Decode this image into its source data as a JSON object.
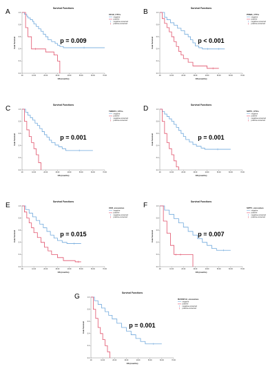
{
  "colors": {
    "negative": "#6fa8dc",
    "positive": "#e0506a",
    "axis": "#555555"
  },
  "chart_data": [
    {
      "type": "line",
      "letter": "A",
      "title": "Survival Functions",
      "legend_title": "CK19_CTCs",
      "legend": [
        "negative",
        "positive",
        "negative-censored",
        "positive-censored"
      ],
      "xlabel": "OS (months)",
      "ylabel": "Cum Survival",
      "xlim": [
        0,
        70
      ],
      "ylim": [
        0,
        1
      ],
      "xticks": [
        ".00",
        "10.00",
        "20.00",
        "30.00",
        "40.00",
        "50.00",
        "60.00",
        "70.00"
      ],
      "yticks": [
        "0.0",
        "0.2",
        "0.4",
        "0.6",
        "0.8",
        "1.0"
      ],
      "p_value": "p = 0.009",
      "series": [
        {
          "name": "negative",
          "x": [
            0,
            2,
            4,
            5,
            7,
            9,
            10,
            12,
            14,
            16,
            18,
            20,
            22,
            25,
            28,
            30,
            32,
            35,
            70
          ],
          "y": [
            1.0,
            0.97,
            0.94,
            0.91,
            0.88,
            0.85,
            0.81,
            0.77,
            0.73,
            0.69,
            0.64,
            0.6,
            0.55,
            0.52,
            0.49,
            0.46,
            0.44,
            0.42,
            0.42
          ]
        },
        {
          "name": "positive",
          "x": [
            0,
            3,
            5,
            8,
            15,
            20,
            27,
            30,
            32
          ],
          "y": [
            1.0,
            0.75,
            0.6,
            0.4,
            0.4,
            0.35,
            0.3,
            0.2,
            0.0
          ]
        }
      ]
    },
    {
      "type": "line",
      "letter": "B",
      "title": "Survival Functions",
      "legend_title": "PSMA_CTCs",
      "legend": [
        "negative",
        "positive",
        "negative-censored",
        "positive-censored"
      ],
      "xlabel": "OS (months)",
      "ylabel": "Cum Survival",
      "xlim": [
        0,
        70
      ],
      "ylim": [
        0,
        1
      ],
      "xticks": [
        ".00",
        "10.00",
        "20.00",
        "30.00",
        "40.00",
        "50.00",
        "60.00",
        "70.00"
      ],
      "yticks": [
        "0.0",
        "0.2",
        "0.4",
        "0.6",
        "0.8",
        "1.0"
      ],
      "p_value": "p < 0.001",
      "series": [
        {
          "name": "negative",
          "x": [
            0,
            4,
            6,
            9,
            12,
            15,
            18,
            21,
            24,
            26,
            28,
            30,
            33,
            36,
            45,
            55
          ],
          "y": [
            1.0,
            0.92,
            0.88,
            0.83,
            0.79,
            0.74,
            0.7,
            0.64,
            0.6,
            0.55,
            0.5,
            0.45,
            0.42,
            0.4,
            0.4,
            0.4
          ]
        },
        {
          "name": "positive",
          "x": [
            0,
            2,
            4,
            6,
            8,
            10,
            12,
            14,
            16,
            18,
            20,
            24,
            28,
            40,
            50
          ],
          "y": [
            1.0,
            0.9,
            0.82,
            0.75,
            0.68,
            0.6,
            0.52,
            0.44,
            0.36,
            0.3,
            0.24,
            0.18,
            0.12,
            0.08,
            0.08
          ]
        }
      ]
    },
    {
      "type": "line",
      "letter": "C",
      "title": "Survival Functions",
      "legend_title": "TWIST1_CTCs",
      "legend": [
        "negative",
        "positive",
        "negative-censored",
        "positive-censored"
      ],
      "xlabel": "OS (months)",
      "ylabel": "Cum Survival",
      "xlim": [
        0,
        70
      ],
      "ylim": [
        0,
        1
      ],
      "xticks": [
        ".00",
        "10.00",
        "20.00",
        "30.00",
        "40.00",
        "50.00",
        "60.00",
        "70.00"
      ],
      "yticks": [
        "0.0",
        "0.2",
        "0.4",
        "0.6",
        "0.8",
        "1.0"
      ],
      "p_value": "p = 0.001",
      "series": [
        {
          "name": "negative",
          "x": [
            0,
            3,
            5,
            7,
            9,
            11,
            13,
            15,
            17,
            19,
            21,
            23,
            25,
            28,
            31,
            34,
            37,
            60
          ],
          "y": [
            1.0,
            0.95,
            0.9,
            0.86,
            0.82,
            0.77,
            0.73,
            0.68,
            0.63,
            0.58,
            0.54,
            0.49,
            0.45,
            0.41,
            0.38,
            0.35,
            0.32,
            0.32
          ]
        },
        {
          "name": "positive",
          "x": [
            0,
            2,
            4,
            6,
            8,
            10,
            12,
            14,
            16
          ],
          "y": [
            1.0,
            0.8,
            0.66,
            0.55,
            0.45,
            0.35,
            0.25,
            0.12,
            0.0
          ]
        }
      ]
    },
    {
      "type": "line",
      "letter": "D",
      "title": "Survival Functions",
      "legend_title": "SIPT1_CTCs",
      "legend": [
        "negative",
        "positive",
        "negative-censored",
        "positive-censored"
      ],
      "xlabel": "OS (months)",
      "ylabel": "Cum Survival",
      "xlim": [
        0,
        70
      ],
      "ylim": [
        0,
        1
      ],
      "xticks": [
        ".00",
        "10.00",
        "20.00",
        "30.00",
        "40.00",
        "50.00",
        "60.00",
        "70.00"
      ],
      "yticks": [
        "0.0",
        "0.2",
        "0.4",
        "0.6",
        "0.8",
        "1.0"
      ],
      "p_value": "p = 0.001",
      "series": [
        {
          "name": "negative",
          "x": [
            0,
            2,
            4,
            6,
            8,
            10,
            12,
            14,
            16,
            18,
            20,
            22,
            25,
            28,
            31,
            35,
            38,
            60
          ],
          "y": [
            1.0,
            0.96,
            0.92,
            0.88,
            0.84,
            0.8,
            0.75,
            0.7,
            0.65,
            0.6,
            0.55,
            0.5,
            0.46,
            0.42,
            0.39,
            0.36,
            0.34,
            0.34
          ]
        },
        {
          "name": "positive",
          "x": [
            0,
            2,
            4,
            6,
            8,
            10,
            12,
            14,
            16
          ],
          "y": [
            1.0,
            0.8,
            0.6,
            0.45,
            0.35,
            0.25,
            0.15,
            0.05,
            0.0
          ]
        }
      ]
    },
    {
      "type": "line",
      "letter": "E",
      "title": "Survival Functions",
      "legend_title": "CK8_exosomes",
      "legend": [
        "negative",
        "positive",
        "negative-censored",
        "positive-censored"
      ],
      "xlabel": "OS (months)",
      "ylabel": "Cum Survival",
      "xlim": [
        0,
        70
      ],
      "ylim": [
        0,
        1
      ],
      "xticks": [
        ".00",
        "10.00",
        "20.00",
        "30.00",
        "40.00",
        "50.00",
        "60.00",
        "70.00"
      ],
      "yticks": [
        "0.0",
        "0.2",
        "0.4",
        "0.6",
        "0.8",
        "1.0"
      ],
      "p_value": "p = 0.015",
      "series": [
        {
          "name": "negative",
          "x": [
            0,
            3,
            6,
            9,
            12,
            15,
            18,
            21,
            24,
            27,
            30,
            34,
            38,
            50
          ],
          "y": [
            1.0,
            0.94,
            0.88,
            0.82,
            0.76,
            0.7,
            0.64,
            0.58,
            0.52,
            0.47,
            0.43,
            0.4,
            0.38,
            0.38
          ]
        },
        {
          "name": "positive",
          "x": [
            0,
            2,
            4,
            6,
            8,
            10,
            13,
            16,
            19,
            22,
            25,
            30,
            35,
            45,
            50
          ],
          "y": [
            1.0,
            0.9,
            0.8,
            0.72,
            0.64,
            0.56,
            0.48,
            0.4,
            0.32,
            0.26,
            0.2,
            0.15,
            0.1,
            0.08,
            0.08
          ]
        }
      ]
    },
    {
      "type": "line",
      "letter": "F",
      "title": "Survival Functions",
      "legend_title": "SIPT1_exosomes",
      "legend": [
        "negative",
        "positive",
        "negative-censored",
        "positive-censored"
      ],
      "xlabel": "OS (months)",
      "ylabel": "Cum Survival",
      "xlim": [
        0,
        70
      ],
      "ylim": [
        0,
        1
      ],
      "xticks": [
        ".00",
        "10.00",
        "20.00",
        "30.00",
        "40.00",
        "50.00",
        "60.00",
        "70.00"
      ],
      "yticks": [
        "0.0",
        "0.2",
        "0.4",
        "0.6",
        "0.8",
        "1.0"
      ],
      "p_value": "p = 0.007",
      "series": [
        {
          "name": "negative",
          "x": [
            0,
            4,
            8,
            12,
            16,
            20,
            24,
            28,
            32,
            36,
            40,
            44,
            48,
            60
          ],
          "y": [
            1.0,
            0.93,
            0.86,
            0.79,
            0.72,
            0.65,
            0.58,
            0.52,
            0.46,
            0.4,
            0.35,
            0.3,
            0.27,
            0.27
          ]
        },
        {
          "name": "positive",
          "x": [
            0,
            3,
            6,
            9,
            12,
            15,
            20,
            28
          ],
          "y": [
            1.0,
            0.75,
            0.55,
            0.35,
            0.2,
            0.2,
            0.2,
            0.0
          ]
        }
      ]
    },
    {
      "type": "line",
      "letter": "G",
      "title": "Survival Functions",
      "legend_title": "RASSF1A_exosomes",
      "legend": [
        "negative",
        "positive",
        "negative-censored",
        "positive-censored"
      ],
      "xlabel": "OS (months)",
      "ylabel": "Cum Survival",
      "xlim": [
        0,
        70
      ],
      "ylim": [
        0,
        1
      ],
      "xticks": [
        ".00",
        "10.00",
        "20.00",
        "30.00",
        "40.00",
        "50.00",
        "60.00",
        "70.00"
      ],
      "yticks": [
        "0.0",
        "0.2",
        "0.4",
        "0.6",
        "0.8",
        "1.0"
      ],
      "p_value": "p = 0.001",
      "series": [
        {
          "name": "negative",
          "x": [
            0,
            3,
            6,
            9,
            12,
            15,
            18,
            22,
            26,
            30,
            34,
            38,
            42,
            46,
            60
          ],
          "y": [
            1.0,
            0.94,
            0.88,
            0.82,
            0.76,
            0.7,
            0.64,
            0.57,
            0.5,
            0.44,
            0.38,
            0.32,
            0.27,
            0.23,
            0.23
          ]
        },
        {
          "name": "positive",
          "x": [
            0,
            2,
            4,
            6,
            8,
            10,
            12,
            14,
            16
          ],
          "y": [
            1.0,
            0.8,
            0.65,
            0.5,
            0.4,
            0.3,
            0.2,
            0.1,
            0.0
          ]
        }
      ]
    }
  ]
}
